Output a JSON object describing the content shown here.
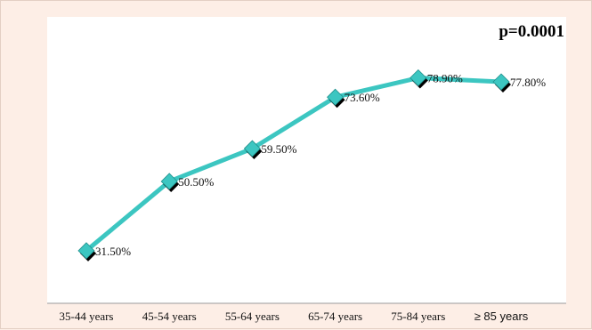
{
  "chart_data": {
    "type": "line",
    "categories": [
      "35-44 years",
      "45-54 years",
      "55-64 years",
      "65-74 years",
      "75-84 years",
      "≥ 85 years"
    ],
    "values": [
      31.5,
      50.5,
      59.5,
      73.6,
      78.9,
      77.8
    ],
    "data_labels": [
      "31.50%",
      "50.50%",
      "59.50%",
      "73.60%",
      "78.90%",
      "77.80%"
    ],
    "annotation": "p=0.0001",
    "title": "",
    "xlabel": "",
    "ylabel": "",
    "ylim": [
      0,
      100
    ],
    "grid": false,
    "legend": false
  },
  "colors": {
    "line": "#3cc6c1",
    "marker": "#3cc6c1",
    "marker_shadow": "#000000",
    "plot_bg": "#ffffff",
    "page_bg": "#fdeee6"
  }
}
